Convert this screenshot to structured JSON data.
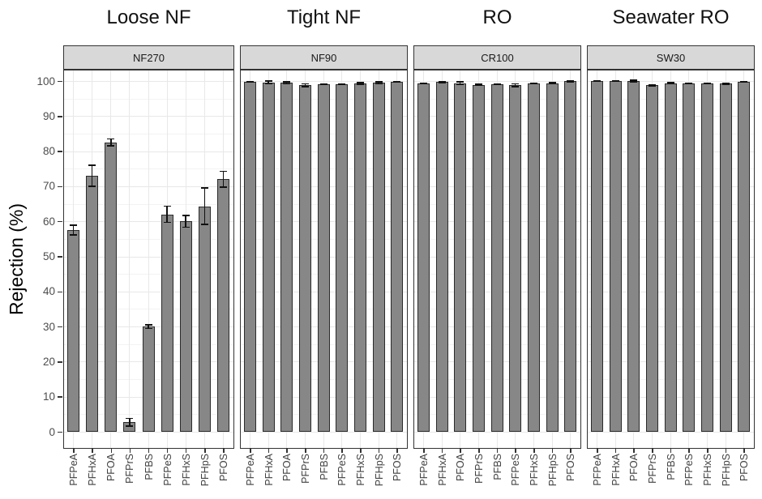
{
  "chart_data": {
    "type": "bar",
    "title": "",
    "ylabel": "Rejection (%)",
    "xlabel": "",
    "ylim": [
      0,
      100
    ],
    "y_major_ticks": [
      0,
      10,
      20,
      30,
      40,
      50,
      60,
      70,
      80,
      90,
      100
    ],
    "grid": "major and minor horizontal, major vertical per category",
    "legend": "none",
    "categories": [
      "PFPeA",
      "PFHxA",
      "PFOA",
      "PFPrS",
      "PFBS",
      "PFPeS",
      "PFHxS",
      "PFHpS",
      "PFOS"
    ],
    "panels": [
      {
        "group_title": "Loose NF",
        "membrane": "NF270",
        "values": [
          57.5,
          73,
          82.5,
          2.7,
          30,
          62,
          60,
          64.3,
          72
        ],
        "errors": [
          1.4,
          3,
          1,
          1.1,
          0.5,
          2.3,
          1.7,
          5.2,
          2.2
        ]
      },
      {
        "group_title": "Tight NF",
        "membrane": "NF90",
        "values": [
          99.8,
          99.6,
          99.5,
          98.8,
          99.1,
          99.1,
          99.3,
          99.5,
          99.8
        ],
        "errors": [
          0.1,
          0.4,
          0.3,
          0.4,
          0.1,
          0.1,
          0.2,
          0.3,
          0.1
        ]
      },
      {
        "group_title": "RO",
        "membrane": "CR100",
        "values": [
          99.3,
          99.7,
          99.4,
          98.9,
          99.1,
          98.8,
          99.3,
          99.4,
          99.9
        ],
        "errors": [
          0.1,
          0.2,
          0.4,
          0.2,
          0.1,
          0.4,
          0.1,
          0.1,
          0.1
        ]
      },
      {
        "group_title": "Seawater RO",
        "membrane": "SW30",
        "values": [
          100,
          100,
          100,
          98.8,
          99.4,
          99.3,
          99.3,
          99.2,
          99.8
        ],
        "errors": [
          0.1,
          0.1,
          0.2,
          0.2,
          0.1,
          0.1,
          0.1,
          0.1,
          0.1
        ]
      }
    ],
    "colors": {
      "bar_fill": "#878787",
      "bar_border": "#2b2b2b",
      "error_bar": "#111111",
      "strip_fill": "#d8d8d8",
      "panel_border": "#333333",
      "grid_major": "#e8e8e8",
      "grid_minor": "#f3f3f3",
      "axis_tick": "#333333",
      "axis_text": "#4d4d4d",
      "title_text": "#111111"
    }
  }
}
